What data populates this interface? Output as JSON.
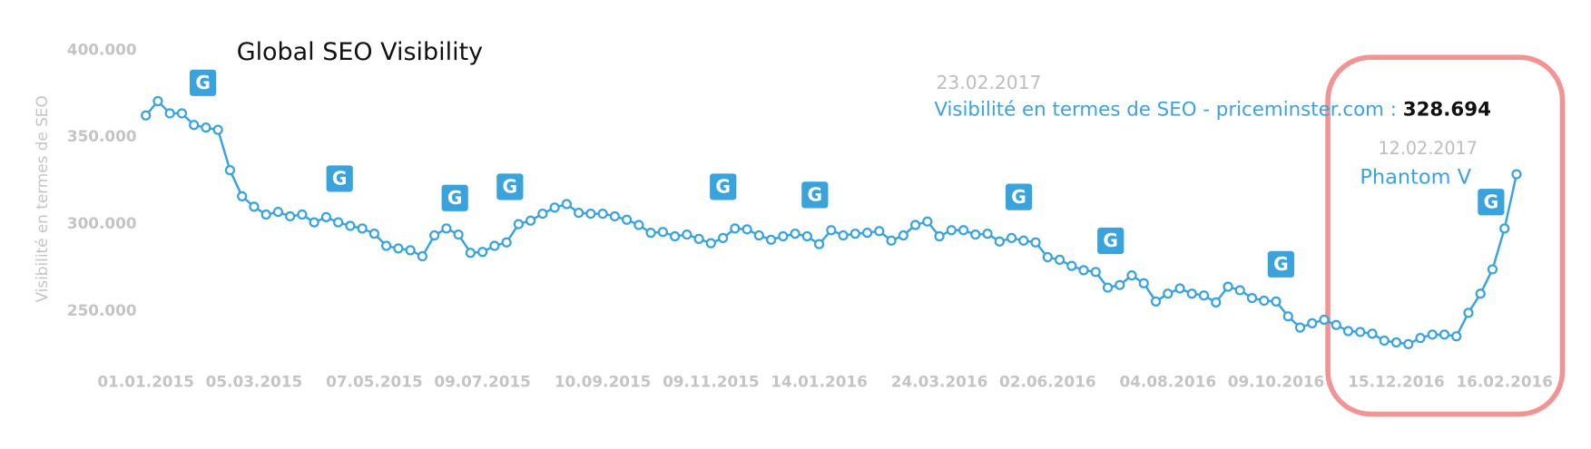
{
  "chart_data": {
    "type": "line",
    "title": "Global SEO Visibility",
    "y_label": "Visibilité en termes de SEO",
    "categories": [
      "01.01.2015",
      null,
      null,
      null,
      null,
      null,
      null,
      null,
      null,
      "05.03.2015",
      null,
      null,
      null,
      null,
      null,
      null,
      null,
      null,
      null,
      "07.05.2015",
      null,
      null,
      null,
      null,
      null,
      null,
      null,
      null,
      "09.07.2015",
      null,
      null,
      null,
      null,
      null,
      null,
      null,
      null,
      null,
      "10.09.2015",
      null,
      null,
      null,
      null,
      null,
      null,
      null,
      null,
      "09.11.2015",
      null,
      null,
      null,
      null,
      null,
      null,
      null,
      null,
      "14.01.2016",
      null,
      null,
      null,
      null,
      null,
      null,
      null,
      null,
      null,
      "24.03.2016",
      null,
      null,
      null,
      null,
      null,
      null,
      null,
      null,
      "02.06.2016",
      null,
      null,
      null,
      null,
      null,
      null,
      null,
      null,
      null,
      "04.08.2016",
      null,
      null,
      null,
      null,
      null,
      null,
      null,
      null,
      "09.10.2016",
      null,
      null,
      null,
      null,
      null,
      null,
      null,
      null,
      null,
      "15.12.2016",
      null,
      null,
      null,
      null,
      null,
      null,
      null,
      null,
      "16.02.2016",
      null
    ],
    "series": [
      {
        "name": "priceminster.com",
        "color": "#3aa3dc",
        "values": [
          362500,
          370700,
          363700,
          363700,
          357000,
          355500,
          354200,
          331000,
          316000,
          310000,
          305500,
          307000,
          304500,
          305500,
          301000,
          304000,
          301000,
          299000,
          297500,
          294500,
          287500,
          286000,
          285000,
          281500,
          293500,
          297500,
          294000,
          283500,
          284000,
          287500,
          289500,
          300000,
          302000,
          306000,
          309500,
          311500,
          306500,
          306000,
          306000,
          304500,
          302500,
          299500,
          295000,
          295500,
          293000,
          294000,
          291500,
          289000,
          292000,
          297500,
          297000,
          293500,
          291000,
          293000,
          294500,
          293000,
          288500,
          296500,
          293500,
          294500,
          295000,
          296000,
          290500,
          293500,
          299500,
          301500,
          293000,
          296500,
          296500,
          294000,
          294500,
          290000,
          292000,
          290500,
          289500,
          281000,
          279500,
          276000,
          273500,
          272500,
          263500,
          265000,
          270500,
          266000,
          255500,
          260000,
          263000,
          260000,
          259000,
          255000,
          264000,
          262000,
          257500,
          256000,
          255500,
          247000,
          240500,
          243000,
          245000,
          242000,
          238500,
          238000,
          237000,
          233000,
          232000,
          231000,
          234500,
          236500,
          236500,
          235500,
          249000,
          260000,
          274000,
          297500,
          328694
        ]
      }
    ],
    "ylim": [
      225000,
      400000
    ],
    "yticks": [
      {
        "value": 250000,
        "label": "250.000"
      },
      {
        "value": 300000,
        "label": "300.000"
      },
      {
        "value": 350000,
        "label": "350.000"
      },
      {
        "value": 400000,
        "label": "400.000"
      }
    ],
    "grid": false,
    "tooltip": {
      "date": "23.02.2017",
      "label": "Visibilité en termes de SEO - priceminster.com : ",
      "value": 328694,
      "value_label": "328.694"
    },
    "annotation": {
      "date": "12.02.2017",
      "label": "Phantom V"
    },
    "google_update_marker": "G"
  }
}
